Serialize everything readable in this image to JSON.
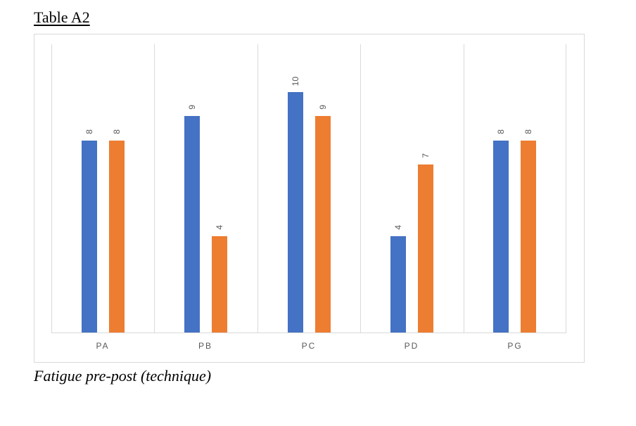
{
  "page": {
    "title": "Table A2",
    "caption": "Fatigue pre-post (technique)"
  },
  "chart_data": {
    "type": "bar",
    "title": "",
    "xlabel": "",
    "ylabel": "",
    "categories": [
      "PA",
      "PB",
      "PC",
      "PD",
      "PG"
    ],
    "series": [
      {
        "name": "Series 1",
        "color": "#4472C4",
        "values": [
          8,
          9,
          10,
          4,
          8
        ]
      },
      {
        "name": "Series 2",
        "color": "#ED7D31",
        "values": [
          8,
          4,
          9,
          7,
          8
        ]
      }
    ],
    "ylim": [
      0,
      12
    ],
    "y_axis_visible": false,
    "grid": "vertical-category-separators-only",
    "gridline_color": "#D9D9D9",
    "axis_line_color": "#D9D9D9",
    "legend": "none",
    "data_labels": {
      "shown": true,
      "rotation_deg": -90,
      "color": "#595959"
    },
    "category_label_color": "#595959"
  }
}
